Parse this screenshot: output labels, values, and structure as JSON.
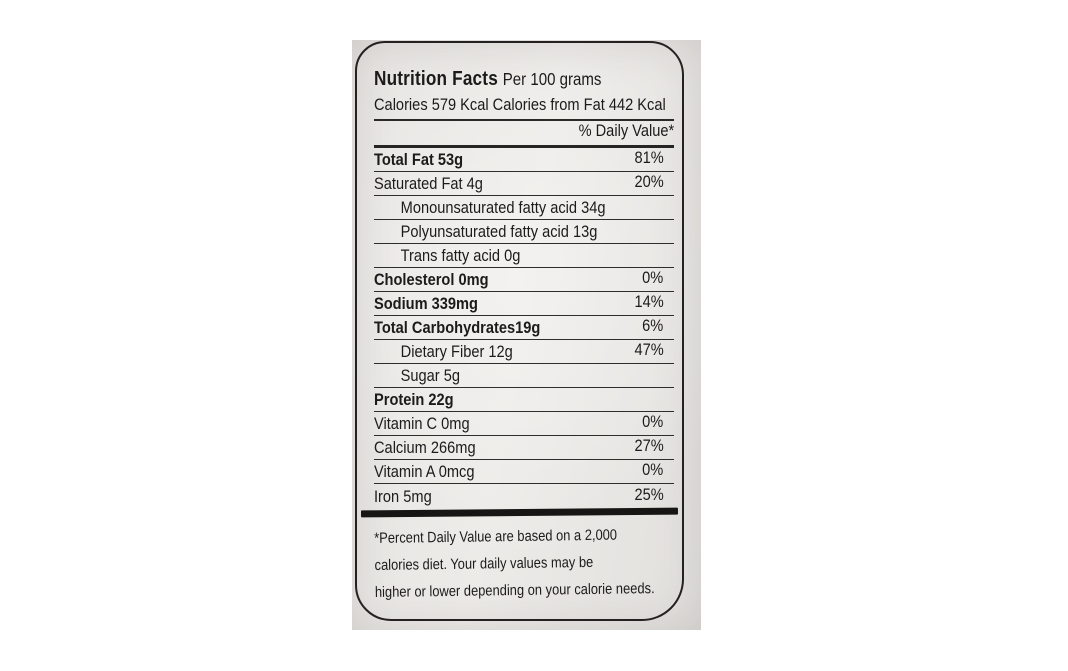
{
  "colors": {
    "page_bg": "#ffffff",
    "label_bg": "#e9e7e4",
    "text": "#1c1b1a",
    "rule": "#2e2d2b"
  },
  "label": {
    "title": "Nutrition Facts",
    "serving": "Per 100 grams",
    "calories_line": "Calories 579 Kcal Calories from Fat 442 Kcal",
    "daily_value_header": "% Daily Value*",
    "rows": [
      {
        "name": "Total Fat 53g",
        "dv": "81%",
        "bold": true,
        "indent": false
      },
      {
        "name": "Saturated Fat 4g",
        "dv": "20%",
        "bold": false,
        "indent": false
      },
      {
        "name": "Monounsaturated fatty acid 34g",
        "dv": "",
        "bold": false,
        "indent": true
      },
      {
        "name": "Polyunsaturated fatty acid 13g",
        "dv": "",
        "bold": false,
        "indent": true
      },
      {
        "name": "Trans fatty acid 0g",
        "dv": "",
        "bold": false,
        "indent": true
      },
      {
        "name": "Cholesterol 0mg",
        "dv": "0%",
        "bold": true,
        "indent": false
      },
      {
        "name": "Sodium 339mg",
        "dv": "14%",
        "bold": true,
        "indent": false
      },
      {
        "name": "Total Carbohydrates19g",
        "dv": "6%",
        "bold": true,
        "indent": false
      },
      {
        "name": "Dietary Fiber 12g",
        "dv": "47%",
        "bold": false,
        "indent": true
      },
      {
        "name": "Sugar 5g",
        "dv": "",
        "bold": false,
        "indent": true
      },
      {
        "name": "Protein 22g",
        "dv": "",
        "bold": true,
        "indent": false
      },
      {
        "name": "Vitamin C 0mg",
        "dv": "0%",
        "bold": false,
        "indent": false
      },
      {
        "name": "Calcium 266mg",
        "dv": "27%",
        "bold": false,
        "indent": false
      },
      {
        "name": "Vitamin A 0mcg",
        "dv": "0%",
        "bold": false,
        "indent": false
      },
      {
        "name": "Iron 5mg",
        "dv": "25%",
        "bold": false,
        "indent": false
      }
    ],
    "footnote_lines": [
      "*Percent Daily Value are based on a 2,000",
      "calories diet. Your daily values may be",
      "higher or lower depending on your calorie needs."
    ]
  }
}
